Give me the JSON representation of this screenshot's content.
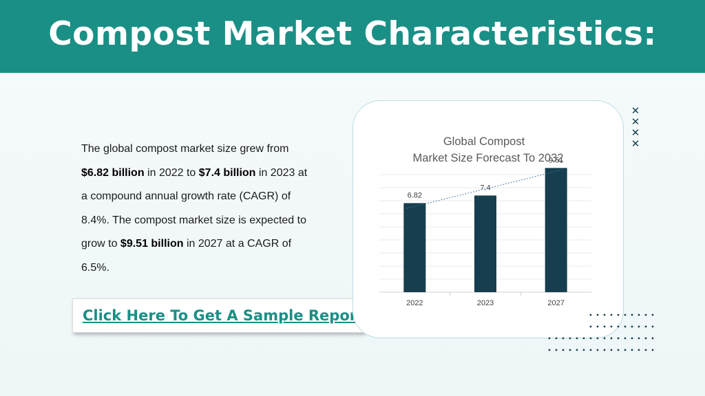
{
  "header": {
    "title": "Compost Market Characteristics:"
  },
  "body": {
    "paragraph": [
      {
        "text": "The global compost market size grew from ",
        "bold": false
      },
      {
        "text": "$6.82 billion",
        "bold": true
      },
      {
        "text": " in 2022 to ",
        "bold": false
      },
      {
        "text": "$7.4 billion",
        "bold": true
      },
      {
        "text": " in 2023 at a compound annual growth rate (CAGR) of 8.4%. The compost market size is expected to grow to ",
        "bold": false
      },
      {
        "text": "$9.51 billion",
        "bold": true
      },
      {
        "text": " in 2027 at a CAGR of 6.5%.",
        "bold": false
      }
    ],
    "cta_label": "Click Here To Get A Sample Report"
  },
  "colors": {
    "header": "#1a8f85",
    "bar": "#163e4e",
    "accent": "#1a8f85",
    "trendline": "#3a73a8"
  },
  "decor": {
    "x_mark_icon_count": 4
  },
  "chart_data": {
    "type": "bar",
    "title_lines": [
      "Global Compost",
      "Market Size Forecast To 2032"
    ],
    "categories": [
      "2022",
      "2023",
      "2027"
    ],
    "values": [
      6.82,
      7.4,
      9.51
    ],
    "data_labels": [
      "6.82",
      "7.4",
      "9.51"
    ],
    "ylim": [
      0,
      10
    ],
    "grid": true,
    "trendline": "linear, dotted",
    "xlabel": "",
    "ylabel": ""
  }
}
